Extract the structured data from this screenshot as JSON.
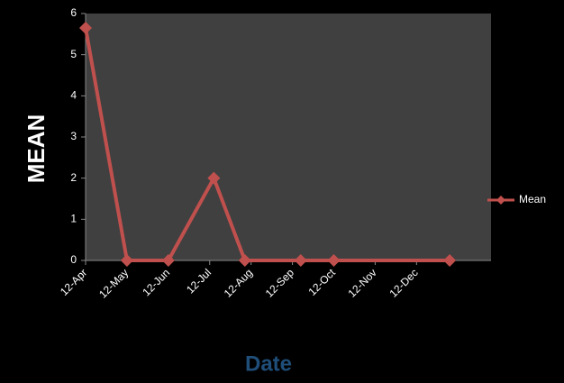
{
  "chart_data": {
    "type": "line",
    "x_label": "Date",
    "y_label": "MEAN",
    "x": [
      0,
      1,
      2,
      3.1,
      3.85,
      5.2,
      6,
      8.8
    ],
    "series": [
      {
        "name": "Mean",
        "color": "#c0504d",
        "values": [
          5.65,
          0,
          0,
          2,
          0,
          0,
          0,
          0
        ]
      }
    ],
    "xlim": [
      0,
      9.8
    ],
    "xticks": [
      {
        "value": 0,
        "label": "12-Apr"
      },
      {
        "value": 1,
        "label": "12-May"
      },
      {
        "value": 2,
        "label": "12-Jun"
      },
      {
        "value": 3,
        "label": "12-Jul"
      },
      {
        "value": 4,
        "label": "12-Aug"
      },
      {
        "value": 5,
        "label": "12-Sep"
      },
      {
        "value": 6,
        "label": "12-Oct"
      },
      {
        "value": 7,
        "label": "12-Nov"
      },
      {
        "value": 8,
        "label": "12-Dec"
      }
    ],
    "ylim": [
      0,
      6
    ],
    "yticks": [
      0,
      1,
      2,
      3,
      4,
      5,
      6
    ],
    "legend": "right"
  }
}
